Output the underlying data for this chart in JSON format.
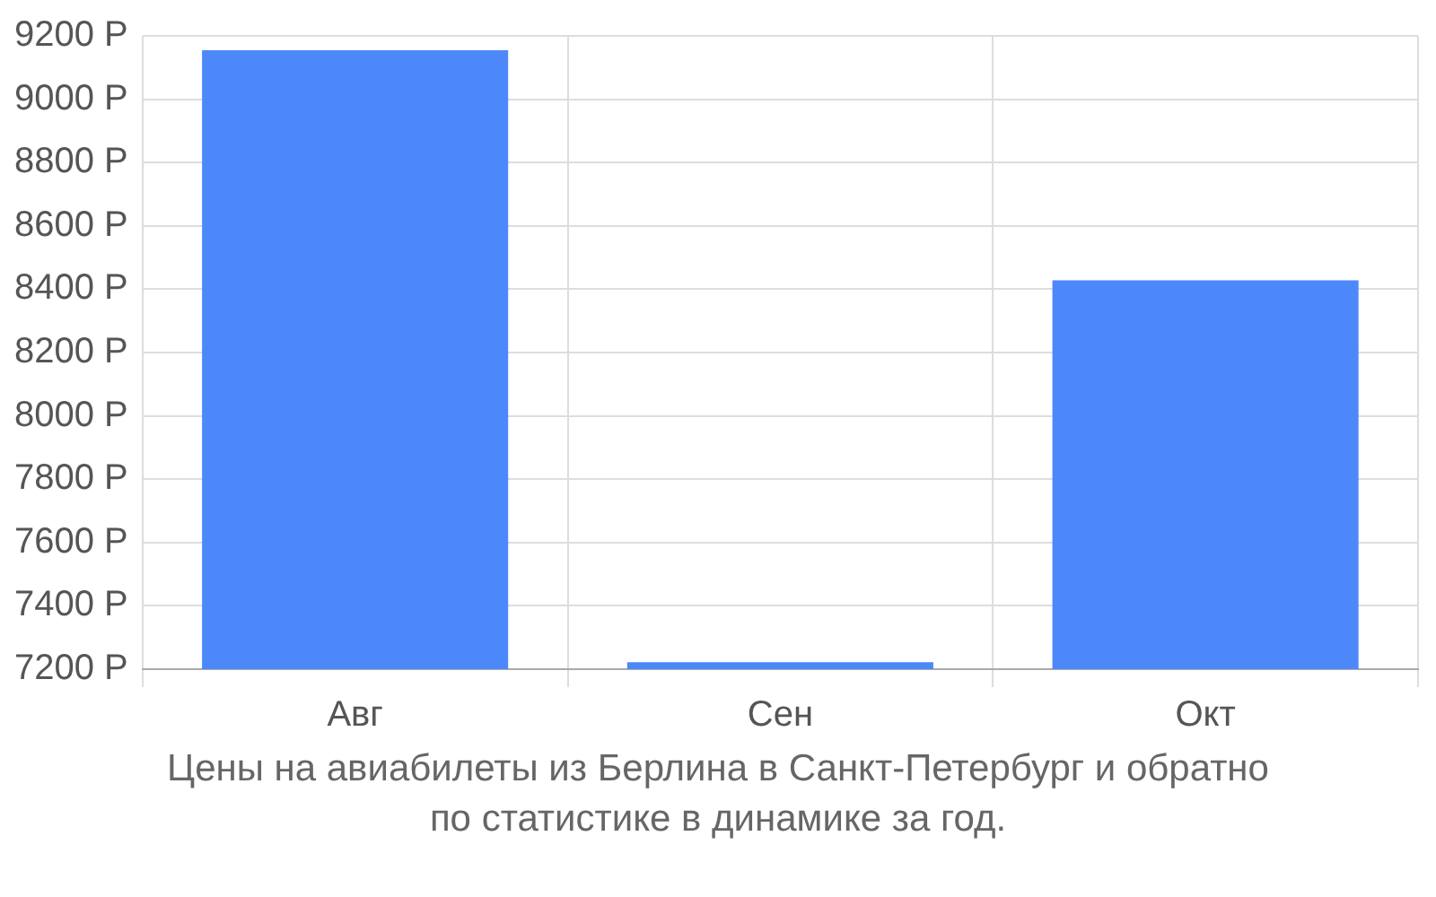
{
  "chart_data": {
    "type": "bar",
    "title": "Цены на авиабилеты из Берлина в Санкт-Петербург и обратно",
    "annotations": [
      "по статистике в динамике за год."
    ],
    "categories": [
      "Авг",
      "Сен",
      "Окт"
    ],
    "values": [
      9155,
      7222,
      8428
    ],
    "color": "#4d88fb",
    "ylim": [
      7200,
      9200
    ],
    "yticks": [
      {
        "value": 7200,
        "label": "7200 Р"
      },
      {
        "value": 7400,
        "label": "7400 Р"
      },
      {
        "value": 7600,
        "label": "7600 Р"
      },
      {
        "value": 7800,
        "label": "7800 Р"
      },
      {
        "value": 8000,
        "label": "8000 Р"
      },
      {
        "value": 8200,
        "label": "8200 Р"
      },
      {
        "value": 8400,
        "label": "8400 Р"
      },
      {
        "value": 8600,
        "label": "8600 Р"
      },
      {
        "value": 8800,
        "label": "8800 Р"
      },
      {
        "value": 9000,
        "label": "9000 Р"
      },
      {
        "value": 9200,
        "label": "9200 Р"
      }
    ],
    "grid": true,
    "legend": false
  }
}
